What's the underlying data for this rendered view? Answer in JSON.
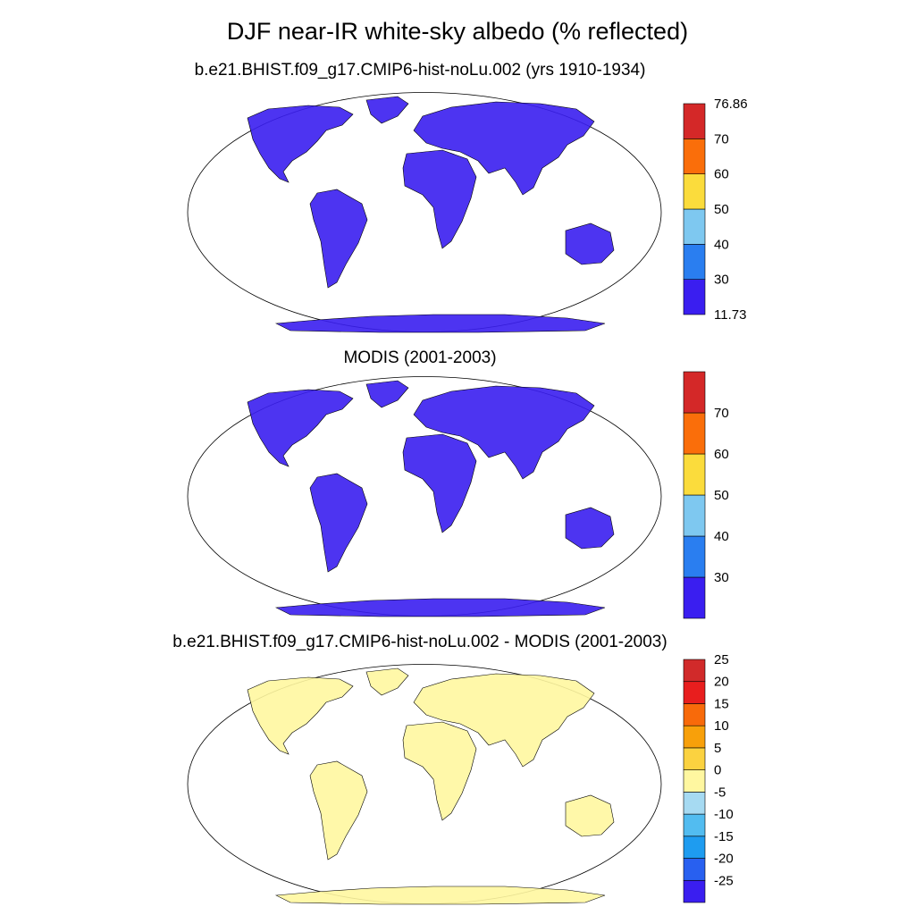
{
  "title": "DJF near-IR white-sky albedo (% reflected)",
  "panels": [
    {
      "title": "b.e21.BHIST.f09_g17.CMIP6-hist-noLu.002 (yrs 1910-1934)",
      "colorbar": {
        "colors": [
          "#3a1ef0",
          "#2a7ef0",
          "#7ec8f0",
          "#fbdc3c",
          "#fa6e0a",
          "#d42828"
        ],
        "labels": [
          "11.73",
          "30",
          "40",
          "50",
          "60",
          "70",
          "76.86"
        ]
      }
    },
    {
      "title": "MODIS (2001-2003)",
      "colorbar": {
        "colors": [
          "#3a1ef0",
          "#2a7ef0",
          "#7ec8f0",
          "#fbdc3c",
          "#fa6e0a",
          "#d42828"
        ],
        "labels": [
          "",
          "30",
          "40",
          "50",
          "60",
          "70",
          ""
        ]
      }
    },
    {
      "title": "b.e21.BHIST.f09_g17.CMIP6-hist-noLu.002 - MODIS (2001-2003)",
      "colorbar": {
        "colors": [
          "#3a1ef0",
          "#2860f0",
          "#1e9cf0",
          "#52bcf0",
          "#a6daf2",
          "#fff7a0",
          "#fbd240",
          "#f8a00a",
          "#f86a0a",
          "#e81e1e",
          "#d12a2a"
        ],
        "labels": [
          "",
          "-25",
          "-20",
          "-15",
          "-10",
          "-5",
          "0",
          "5",
          "10",
          "15",
          "20",
          "25",
          ""
        ]
      }
    }
  ]
}
